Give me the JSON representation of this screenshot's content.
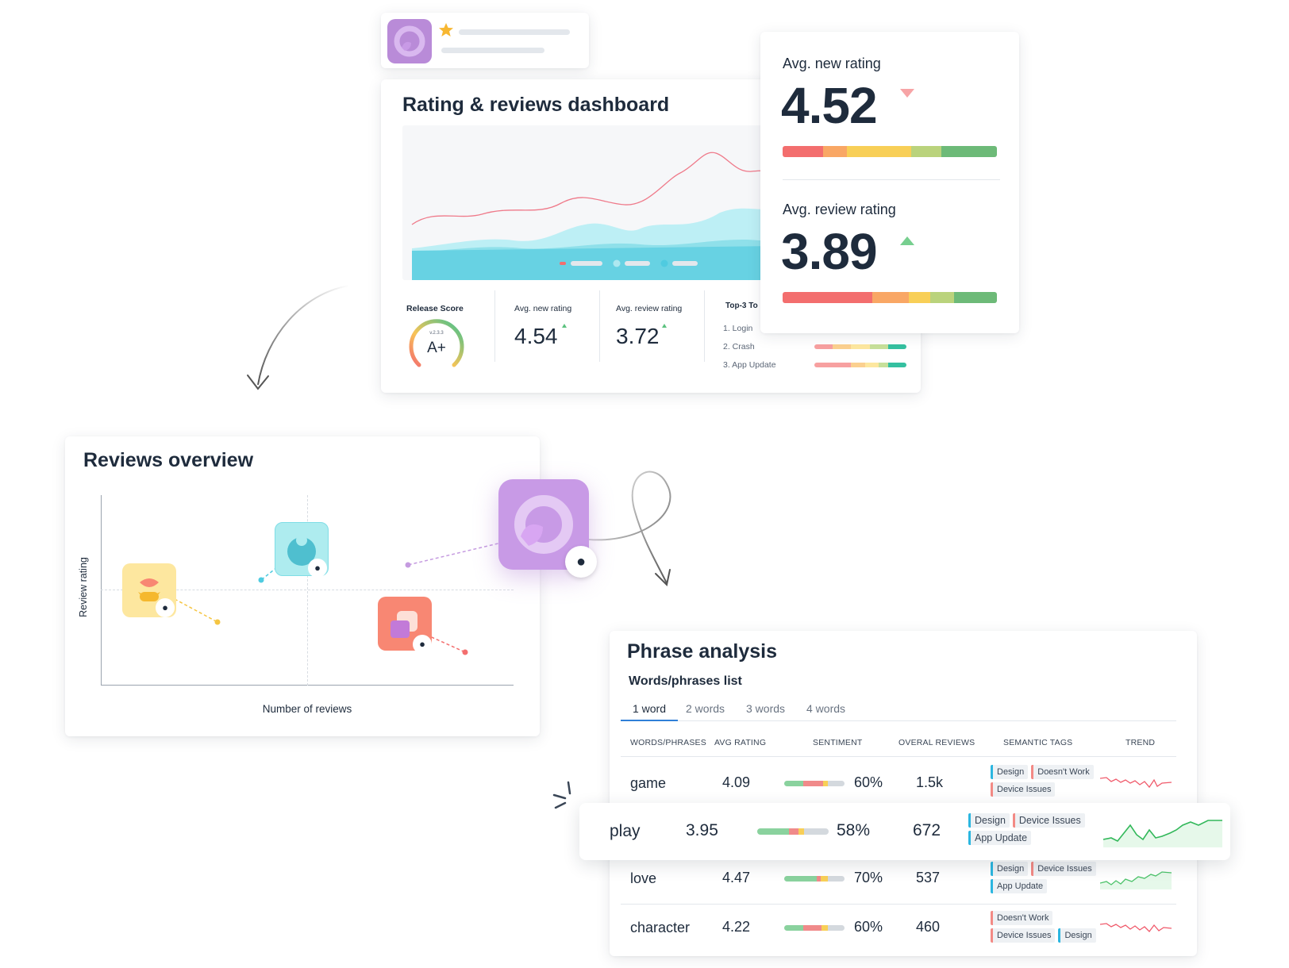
{
  "colors": {
    "purple": "#b98bd8",
    "teal": "#7fdde6",
    "yellow": "#fde79f",
    "coral": "#f88773",
    "green_bar": "#5fb27a",
    "red_bar": "#f36e6e",
    "up_green": "#77cf8f",
    "down_red": "#f7a4a6"
  },
  "app_strip": {
    "icon": "app-logo-icon",
    "star_icon": "star-icon"
  },
  "dashboard": {
    "title": "Rating & reviews dashboard",
    "kpis": [
      {
        "label": "Release Score",
        "version": "v.2.3.3",
        "grade": "A+"
      },
      {
        "label": "Avg. new rating",
        "value": "4.54",
        "trend": "up"
      },
      {
        "label": "Avg. review rating",
        "value": "3.72",
        "trend": "up"
      }
    ],
    "topics": {
      "label": "Top-3 To",
      "items": [
        "1.  Login",
        "2.  Crash",
        "3.  App Update"
      ]
    }
  },
  "rating_popup": {
    "new_label": "Avg. new rating",
    "new_value": "4.52",
    "new_trend": "down",
    "review_label": "Avg. review rating",
    "review_value": "3.89",
    "review_trend": "up"
  },
  "reviews_overview": {
    "title": "Reviews overview",
    "y_label": "Review rating",
    "x_label": "Number of reviews"
  },
  "phrase_analysis": {
    "title": "Phrase analysis",
    "subtitle": "Words/phrases list",
    "tabs": [
      "1 word",
      "2 words",
      "3 words",
      "4 words"
    ],
    "active_tab": "1 word",
    "columns": [
      "WORDS/PHRASES",
      "AVG RATING",
      "SENTIMENT",
      "OVERAL REVIEWS",
      "SEMANTIC TAGS",
      "TREND"
    ],
    "rows": [
      {
        "word": "game",
        "rating": "4.09",
        "sentiment": "60%",
        "reviews": "1.5k",
        "tags": [
          [
            "Design",
            "blue"
          ],
          [
            "Doesn't Work",
            "red"
          ],
          [
            "Device Issues",
            "red"
          ]
        ],
        "trend": "down"
      },
      {
        "word": "play",
        "rating": "3.95",
        "sentiment": "58%",
        "reviews": "672",
        "tags": [
          [
            "Design",
            "blue"
          ],
          [
            "Device Issues",
            "red"
          ],
          [
            "App Update",
            "blue"
          ]
        ],
        "trend": "up"
      },
      {
        "word": "love",
        "rating": "4.47",
        "sentiment": "70%",
        "reviews": "537",
        "tags": [
          [
            "Design",
            "blue"
          ],
          [
            "Device Issues",
            "red"
          ],
          [
            "App Update",
            "blue"
          ]
        ],
        "trend": "up"
      },
      {
        "word": "character",
        "rating": "4.22",
        "sentiment": "60%",
        "reviews": "460",
        "tags": [
          [
            "Doesn't Work",
            "red"
          ],
          [
            "Device Issues",
            "red"
          ],
          [
            "Design",
            "blue"
          ]
        ],
        "trend": "down"
      }
    ]
  }
}
